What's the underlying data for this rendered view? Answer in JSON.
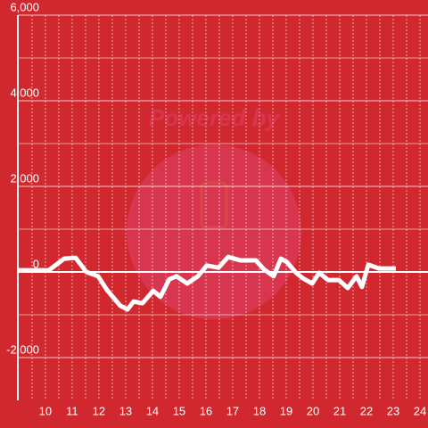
{
  "chart_data": {
    "type": "line",
    "watermark": "Powered by",
    "background": "#d0282e",
    "x": [
      8.97,
      10.13,
      10.7,
      11.13,
      11.53,
      11.97,
      12.3,
      12.8,
      13.07,
      13.3,
      13.63,
      14.03,
      14.3,
      14.63,
      14.9,
      15.3,
      15.7,
      16.03,
      16.47,
      16.83,
      17.3,
      17.87,
      18.17,
      18.53,
      18.8,
      19.03,
      19.37,
      19.63,
      19.97,
      20.23,
      20.57,
      20.97,
      21.3,
      21.63,
      21.83,
      22.07,
      22.47,
      23.1
    ],
    "series": [
      {
        "color": "#ffffff",
        "values": [
          40,
          40,
          310,
          330,
          0,
          -100,
          -420,
          -790,
          -875,
          -690,
          -730,
          -440,
          -580,
          -170,
          -100,
          -270,
          -100,
          150,
          100,
          350,
          270,
          270,
          60,
          -100,
          310,
          230,
          -20,
          -150,
          -270,
          -20,
          -190,
          -190,
          -375,
          -100,
          -350,
          170,
          80,
          80
        ]
      }
    ],
    "xlim": [
      8.97,
      24.3
    ],
    "xticks": [
      10,
      11,
      12,
      13,
      14,
      15,
      16,
      17,
      18,
      19,
      20,
      21,
      22,
      23,
      24
    ],
    "xminor": [
      9.5,
      10.5,
      11.5,
      12.5,
      13.5,
      14.5,
      15.5,
      16.5,
      17.5,
      18.5,
      19.5,
      20.5,
      21.5,
      22.5,
      23.5
    ],
    "ylim": [
      -3000,
      6000
    ],
    "yticks": [
      {
        "value": -2000,
        "label": "-2,000"
      },
      0,
      {
        "value": 2000,
        "label": "2,000"
      },
      {
        "value": 4000,
        "label": "4,000"
      },
      {
        "value": 6000,
        "label": "6,000"
      }
    ],
    "yminor": [
      -1000,
      1000,
      3000,
      5000
    ],
    "grid": true
  }
}
